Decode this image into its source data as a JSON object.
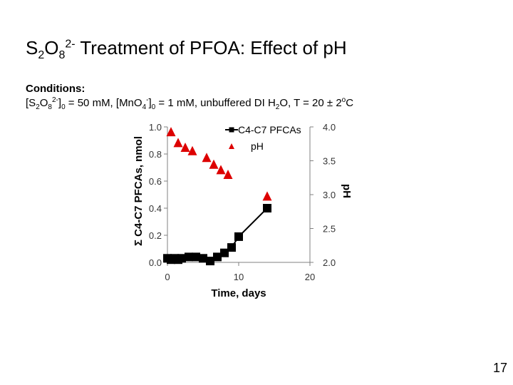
{
  "slide": {
    "title_parts": [
      "S",
      "2",
      "O",
      "8",
      "2-",
      " Treatment of PFOA: Effect of pH"
    ],
    "conditions_label": "Conditions:",
    "conditions_parts": [
      "[S",
      "2",
      "O",
      "8",
      "2-",
      "]",
      "0",
      " = 50 mM, [MnO",
      "4",
      "-",
      "]",
      "0",
      " = 1 mM, unbuffered DI H",
      "2",
      "O, T = 20 ± 2",
      "o",
      "C"
    ],
    "page_number": "17"
  },
  "chart_data": {
    "type": "scatter",
    "xlabel": "Time, days",
    "ylabel": "Σ C4-C7 PFCAs, nmol",
    "y2label": "pH",
    "xlim": [
      0,
      20
    ],
    "ylim": [
      0,
      1.0
    ],
    "y2lim": [
      2.0,
      4.0
    ],
    "xticks": [
      "0",
      "10",
      "20"
    ],
    "yticks": [
      "0.0",
      "0.2",
      "0.4",
      "0.6",
      "0.8",
      "1.0"
    ],
    "y2ticks": [
      "2.0",
      "2.5",
      "3.0",
      "3.5",
      "4.0"
    ],
    "legend_position": "top-right",
    "series": [
      {
        "name": "C4-C7 PFCAs",
        "axis": "left",
        "marker": "square",
        "line": true,
        "color": "#000000",
        "x": [
          0,
          0.5,
          1,
          1.5,
          2,
          3,
          4,
          5,
          6,
          7,
          8,
          9,
          10,
          14
        ],
        "y": [
          0.03,
          0.02,
          0.03,
          0.02,
          0.03,
          0.04,
          0.04,
          0.03,
          0.01,
          0.04,
          0.07,
          0.11,
          0.19,
          0.4
        ]
      },
      {
        "name": "pH",
        "axis": "right",
        "marker": "triangle",
        "line": false,
        "color": "#dd0000",
        "x": [
          0.5,
          1.5,
          2.5,
          3.5,
          5.5,
          6.5,
          7.5,
          8.5,
          14
        ],
        "y": [
          3.93,
          3.77,
          3.7,
          3.65,
          3.55,
          3.45,
          3.37,
          3.3,
          2.98
        ]
      }
    ]
  }
}
